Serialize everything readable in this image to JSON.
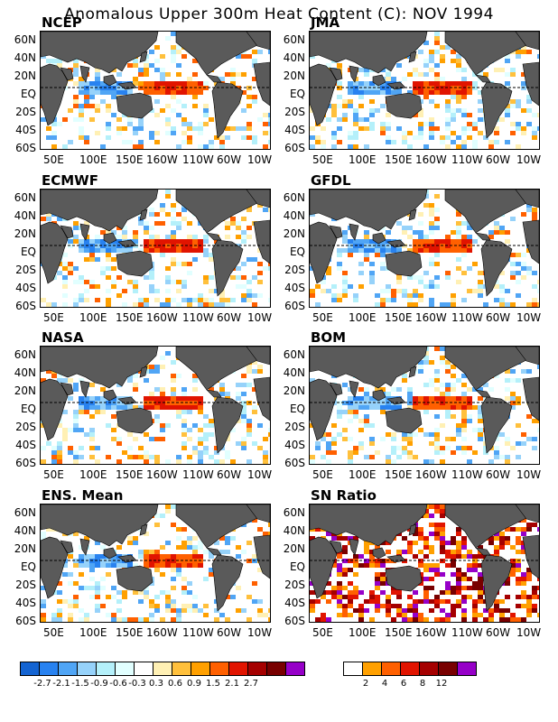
{
  "title": "Anomalous Upper 300m Heat Content (C): NOV 1994",
  "lat_labels": [
    "60N",
    "40N",
    "20N",
    "EQ",
    "20S",
    "40S",
    "60S"
  ],
  "lon_labels": [
    "50E",
    "100E",
    "150E",
    "160W",
    "110W",
    "60W",
    "10W"
  ],
  "panels": [
    {
      "name": "NCEP",
      "kind": "anom",
      "seed": 11
    },
    {
      "name": "JMA",
      "kind": "anom",
      "seed": 23
    },
    {
      "name": "ECMWF",
      "kind": "anom",
      "seed": 37
    },
    {
      "name": "GFDL",
      "kind": "anom",
      "seed": 41
    },
    {
      "name": "NASA",
      "kind": "anom",
      "seed": 53
    },
    {
      "name": "BOM",
      "kind": "anom",
      "seed": 67
    },
    {
      "name": "ENS. Mean",
      "kind": "anom",
      "seed": 79
    },
    {
      "name": "SN Ratio",
      "kind": "snr",
      "seed": 97
    }
  ],
  "anom_colorbar": {
    "colors": [
      "#1464d2",
      "#2882f0",
      "#50a5f5",
      "#96d2fa",
      "#b4f0fa",
      "#e1ffff",
      "#ffffff",
      "#fff0b4",
      "#ffc03c",
      "#ffa000",
      "#ff6000",
      "#e11400",
      "#a50000",
      "#780000",
      "#9600c8"
    ],
    "labels": [
      "-2.7",
      "-2.1",
      "-1.5",
      "-0.9",
      "-0.6",
      "-0.3",
      "0.3",
      "0.6",
      "0.9",
      "1.5",
      "2.1",
      "2.7"
    ]
  },
  "snr_colorbar": {
    "colors": [
      "#ffffff",
      "#ffa000",
      "#ff6000",
      "#e11400",
      "#a50000",
      "#780000",
      "#9600c8"
    ],
    "labels": [
      "2",
      "4",
      "6",
      "8",
      "12"
    ]
  },
  "land_color": "#5a5a5a"
}
